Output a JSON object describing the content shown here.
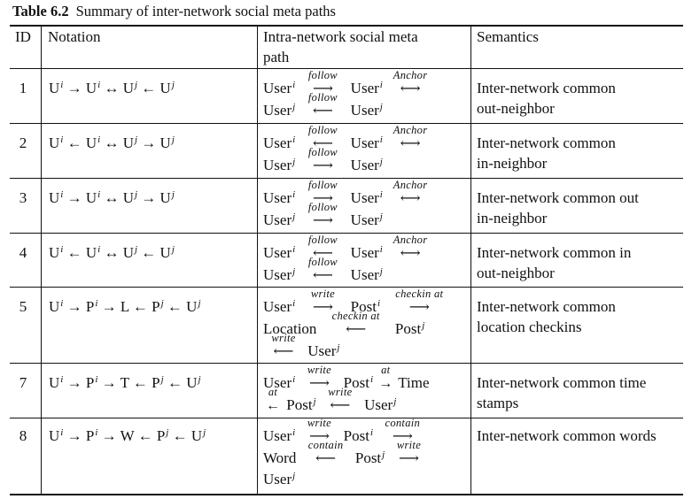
{
  "caption": {
    "label": "Table 6.2",
    "title": "Summary of inter-network social meta paths"
  },
  "headers": {
    "id": "ID",
    "notation": "Notation",
    "intra": "Intra-network social meta",
    "intra2": "path",
    "semantics": "Semantics"
  },
  "rows": [
    {
      "id": "1",
      "sem1": "Inter-network common",
      "sem2": "out-neighbor"
    },
    {
      "id": "2",
      "sem1": "Inter-network common",
      "sem2": "in-neighbor"
    },
    {
      "id": "3",
      "sem1": "Inter-network common out",
      "sem2": "in-neighbor"
    },
    {
      "id": "4",
      "sem1": "Inter-network common in",
      "sem2": "out-neighbor"
    },
    {
      "id": "5",
      "sem1": "Inter-network common",
      "sem2": "location checkins"
    },
    {
      "id": "7",
      "sem1": "Inter-network common time",
      "sem2": "stamps"
    },
    {
      "id": "8",
      "sem1": "Inter-network common words",
      "sem2": ""
    }
  ],
  "terms": {
    "U": "U",
    "P": "P",
    "L": "L",
    "T": "T",
    "W": "W",
    "user": "User",
    "post": "Post",
    "location": "Location",
    "time": "Time",
    "word": "Word",
    "i": "i",
    "j": "j"
  },
  "labels": {
    "follow": "follow",
    "anchor": "Anchor",
    "write": "write",
    "checkin": "checkin at",
    "at": "at",
    "contain": "contain"
  },
  "arrows": {
    "right": "→",
    "left": "←",
    "both": "↔",
    "long_right": "⟶",
    "long_left": "⟵",
    "long_both": "⟷"
  }
}
